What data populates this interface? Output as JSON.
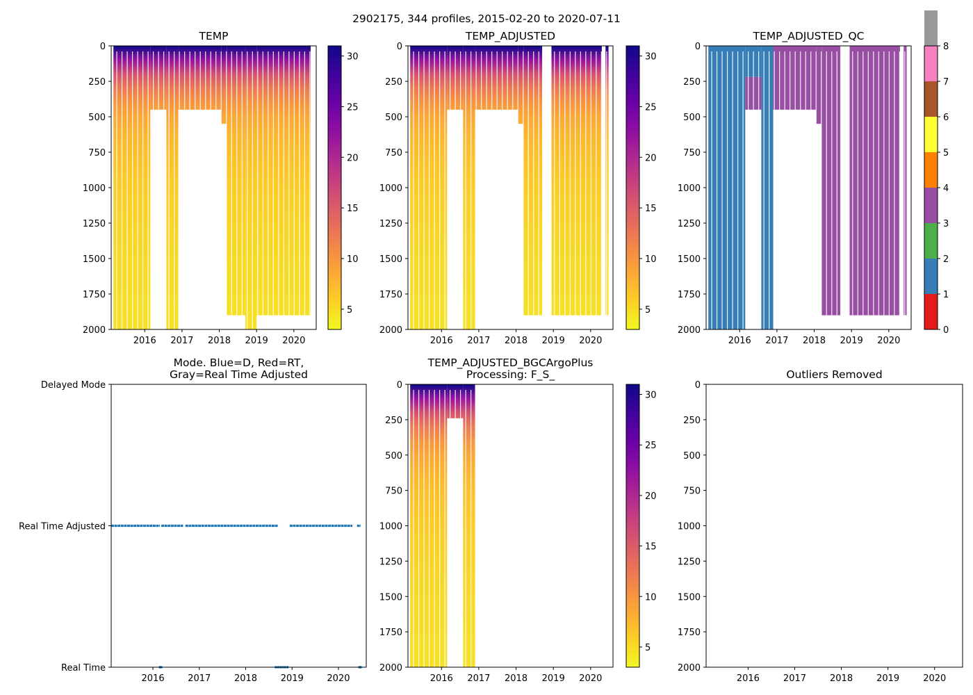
{
  "figure": {
    "suptitle": "2902175, 344 profiles, 2015-02-20 to 2020-07-11"
  },
  "chart_data": [
    {
      "id": "temp",
      "type": "heatmap",
      "title": "TEMP",
      "xlim": [
        2015.1,
        2020.6
      ],
      "xticks": [
        2016,
        2017,
        2018,
        2019,
        2020
      ],
      "ylim": [
        2000,
        0
      ],
      "yticks": [
        0,
        250,
        500,
        750,
        1000,
        1250,
        1500,
        1750,
        2000
      ],
      "colorbar": {
        "cmap": "plasma_r",
        "range": [
          3,
          31
        ],
        "ticks": [
          5,
          10,
          15,
          20,
          25,
          30
        ]
      },
      "coverage": [
        {
          "start": 2015.16,
          "end": 2016.15,
          "max_depth": 2000
        },
        {
          "start": 2016.15,
          "end": 2016.58,
          "max_depth": 450
        },
        {
          "start": 2016.58,
          "end": 2016.9,
          "max_depth": 2000
        },
        {
          "start": 2016.9,
          "end": 2018.05,
          "max_depth": 450
        },
        {
          "start": 2018.05,
          "end": 2018.2,
          "max_depth": 550
        },
        {
          "start": 2018.2,
          "end": 2018.7,
          "max_depth": 1900
        },
        {
          "start": 2018.7,
          "end": 2019.0,
          "max_depth": 2000
        },
        {
          "start": 2019.0,
          "end": 2020.45,
          "max_depth": 1900
        }
      ]
    },
    {
      "id": "temp_adj",
      "type": "heatmap",
      "title": "TEMP_ADJUSTED",
      "xlim": [
        2015.1,
        2020.6
      ],
      "xticks": [
        2016,
        2017,
        2018,
        2019,
        2020
      ],
      "ylim": [
        2000,
        0
      ],
      "yticks": [
        0,
        250,
        500,
        750,
        1000,
        1250,
        1500,
        1750,
        2000
      ],
      "colorbar": {
        "cmap": "plasma_r",
        "range": [
          3,
          31
        ],
        "ticks": [
          5,
          10,
          15,
          20,
          25,
          30
        ]
      },
      "coverage": [
        {
          "start": 2015.16,
          "end": 2016.15,
          "max_depth": 2000
        },
        {
          "start": 2016.15,
          "end": 2016.58,
          "max_depth": 450
        },
        {
          "start": 2016.58,
          "end": 2016.9,
          "max_depth": 2000
        },
        {
          "start": 2016.9,
          "end": 2018.05,
          "max_depth": 450
        },
        {
          "start": 2018.05,
          "end": 2018.2,
          "max_depth": 550
        },
        {
          "start": 2018.2,
          "end": 2018.7,
          "max_depth": 1900
        },
        {
          "start": 2018.95,
          "end": 2020.3,
          "max_depth": 1900
        },
        {
          "start": 2020.4,
          "end": 2020.48,
          "max_depth": 1900
        }
      ]
    },
    {
      "id": "temp_qc",
      "type": "heatmap",
      "title": "TEMP_ADJUSTED_QC",
      "xlim": [
        2015.1,
        2020.6
      ],
      "xticks": [
        2016,
        2017,
        2018,
        2019,
        2020
      ],
      "ylim": [
        2000,
        0
      ],
      "yticks": [
        0,
        250,
        500,
        750,
        1000,
        1250,
        1500,
        1750,
        2000
      ],
      "colorbar": {
        "range": [
          0,
          8
        ],
        "ticks": [
          0,
          1,
          2,
          3,
          4,
          5,
          6,
          7,
          8
        ],
        "colors": [
          "#e41a1c",
          "#377eb8",
          "#4daf4a",
          "#984ea3",
          "#ff7f00",
          "#ffff33",
          "#a65628",
          "#f781bf",
          "#999999"
        ]
      },
      "coverage": [
        {
          "start": 2015.16,
          "end": 2016.15,
          "max_depth": 2000,
          "qc": 1
        },
        {
          "start": 2016.15,
          "end": 2016.58,
          "max_depth": 450,
          "qc": 1,
          "lower_qc": 3,
          "split_depth": 220
        },
        {
          "start": 2016.58,
          "end": 2016.9,
          "max_depth": 2000,
          "qc": 1
        },
        {
          "start": 2016.9,
          "end": 2018.05,
          "max_depth": 450,
          "qc": 3
        },
        {
          "start": 2018.05,
          "end": 2018.2,
          "max_depth": 550,
          "qc": 3
        },
        {
          "start": 2018.2,
          "end": 2018.7,
          "max_depth": 1900,
          "qc": 3
        },
        {
          "start": 2018.95,
          "end": 2020.3,
          "max_depth": 1900,
          "qc": 3
        },
        {
          "start": 2020.4,
          "end": 2020.48,
          "max_depth": 1900,
          "qc": 3
        }
      ]
    },
    {
      "id": "mode",
      "type": "scatter",
      "title": "Mode. Blue=D, Red=RT,\nGray=Real Time Adjusted",
      "xlim": [
        2015.1,
        2020.6
      ],
      "xticks": [
        2016,
        2017,
        2018,
        2019,
        2020
      ],
      "ylevels": [
        "Delayed Mode",
        "Real Time Adjusted",
        "Real Time"
      ],
      "series": [
        {
          "name": "Real Time Adjusted",
          "level": "Real Time Adjusted",
          "color": "#1f77b4",
          "segments": [
            [
              2015.1,
              2016.15
            ],
            [
              2016.18,
              2016.65
            ],
            [
              2016.7,
              2018.7
            ],
            [
              2018.95,
              2020.3
            ],
            [
              2020.4,
              2020.48
            ]
          ]
        },
        {
          "name": "Real Time",
          "level": "Real Time",
          "color": "#1f77b4",
          "points": [
            2016.15,
            2016.18,
            2018.65,
            2018.7,
            2018.75,
            2018.8,
            2018.85,
            2018.9,
            2020.45,
            2020.48
          ]
        }
      ]
    },
    {
      "id": "bgc",
      "type": "heatmap",
      "title": "TEMP_ADJUSTED_BGCArgoPlus\nProcessing: F_S_",
      "xlim": [
        2015.1,
        2020.6
      ],
      "xticks": [
        2016,
        2017,
        2018,
        2019,
        2020
      ],
      "ylim": [
        2000,
        0
      ],
      "yticks": [
        0,
        250,
        500,
        750,
        1000,
        1250,
        1500,
        1750,
        2000
      ],
      "colorbar": {
        "cmap": "plasma_r",
        "range": [
          3,
          31
        ],
        "ticks": [
          5,
          10,
          15,
          20,
          25,
          30
        ]
      },
      "coverage": [
        {
          "start": 2015.16,
          "end": 2016.15,
          "max_depth": 2000
        },
        {
          "start": 2016.15,
          "end": 2016.58,
          "max_depth": 240
        },
        {
          "start": 2016.58,
          "end": 2016.9,
          "max_depth": 2000
        }
      ]
    },
    {
      "id": "outliers",
      "type": "heatmap",
      "title": "Outliers Removed",
      "xlim": [
        2015.1,
        2020.6
      ],
      "xticks": [
        2016,
        2017,
        2018,
        2019,
        2020
      ],
      "ylim": [
        2000,
        0
      ],
      "yticks": [
        0,
        250,
        500,
        750,
        1000,
        1250,
        1500,
        1750,
        2000
      ],
      "coverage": []
    }
  ]
}
